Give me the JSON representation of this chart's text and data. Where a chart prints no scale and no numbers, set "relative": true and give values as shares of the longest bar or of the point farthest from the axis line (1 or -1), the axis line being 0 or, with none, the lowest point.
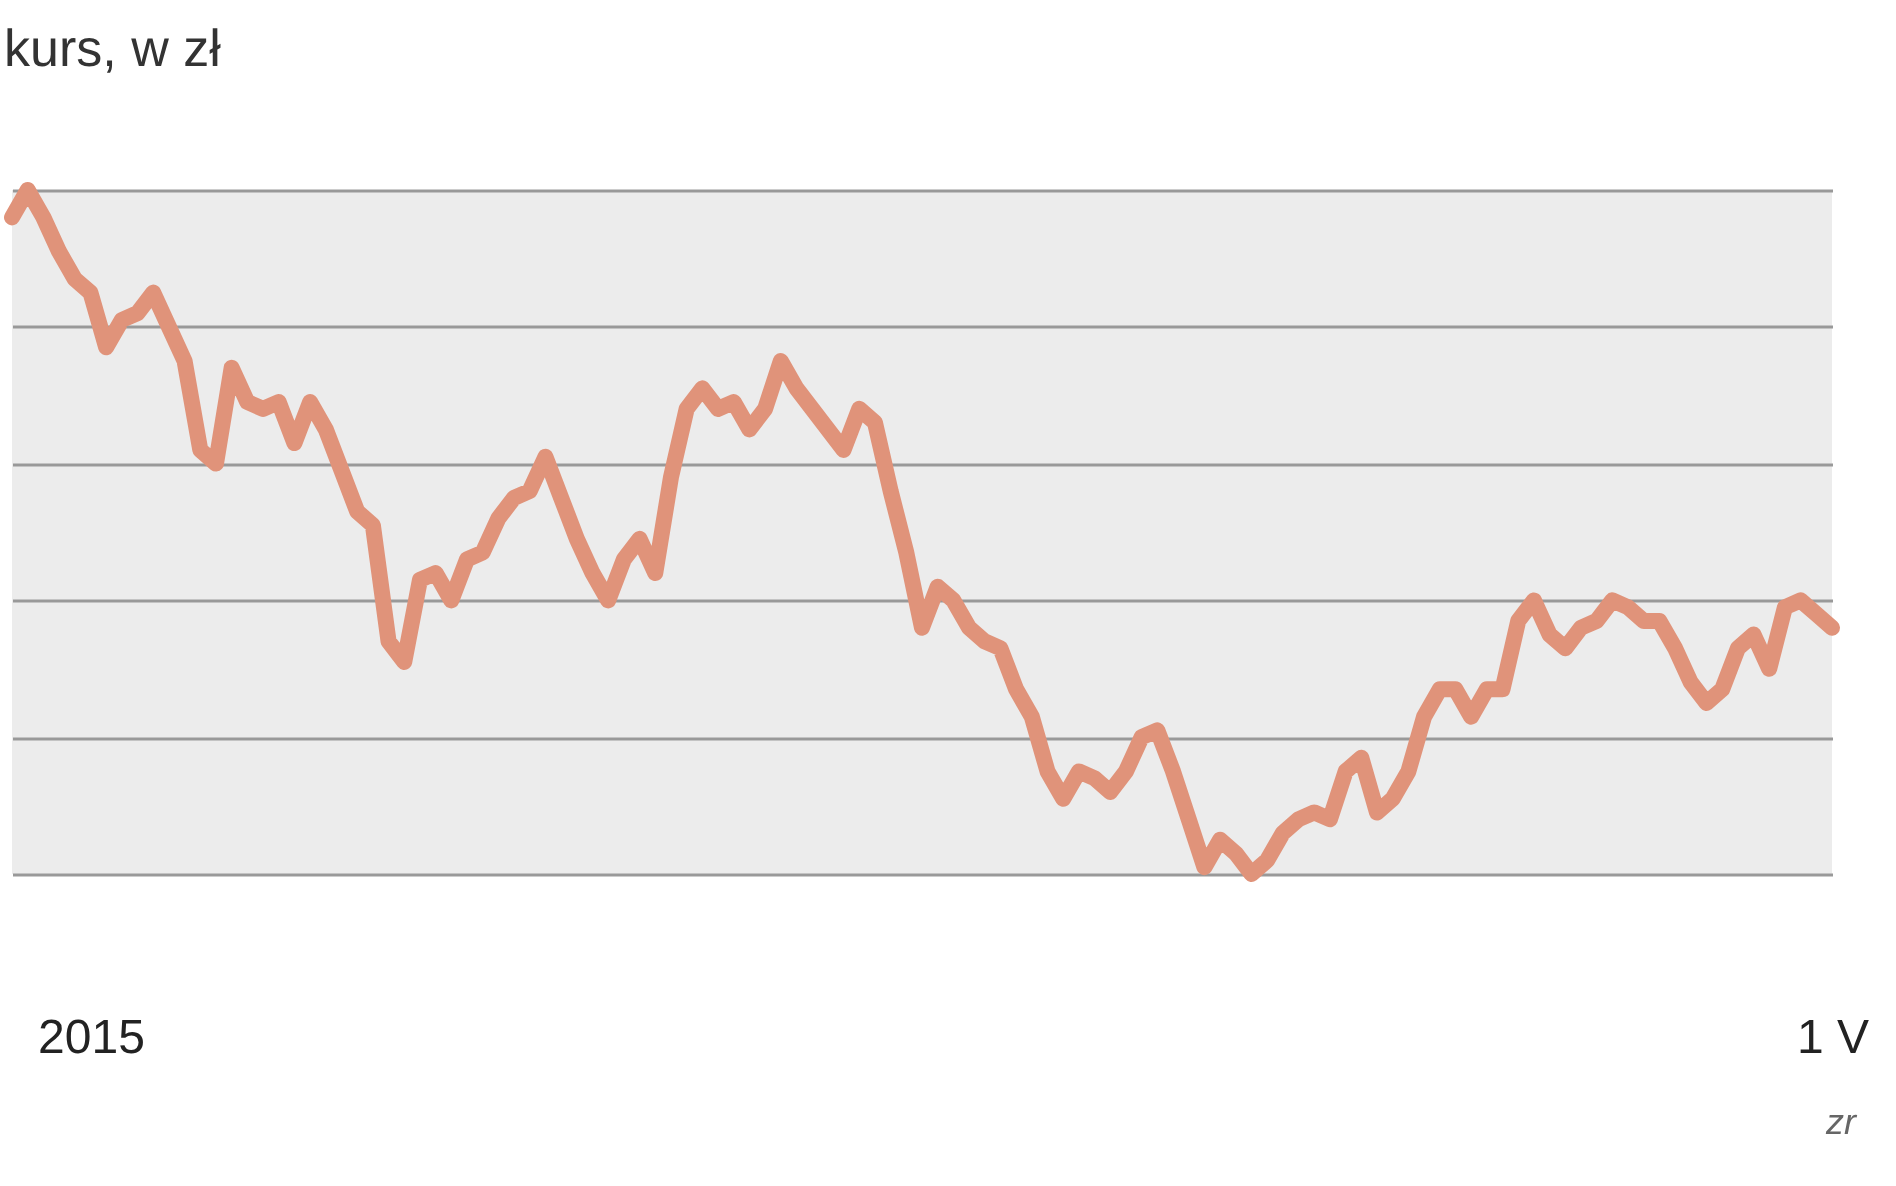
{
  "chart_data": {
    "type": "line",
    "title": "kurs, w zł",
    "relative": true,
    "grid": "y",
    "annotations": [
      "źr"
    ],
    "categories": [
      null,
      null,
      null,
      null,
      null,
      "2015",
      null,
      null,
      null,
      null,
      null,
      null,
      null,
      null,
      null,
      null,
      null,
      null,
      null,
      null,
      null,
      null,
      null,
      null,
      null,
      null,
      null,
      null,
      null,
      null,
      null,
      null,
      null,
      null,
      null,
      null,
      null,
      null,
      null,
      null,
      null,
      null,
      null,
      null,
      null,
      null,
      null,
      null,
      null,
      null,
      null,
      null,
      null,
      null,
      null,
      null,
      null,
      null,
      null,
      null,
      null,
      null,
      null,
      null,
      null,
      null,
      null,
      null,
      null,
      null,
      null,
      null,
      null,
      null,
      null,
      null,
      null,
      null,
      null,
      null,
      null,
      null,
      null,
      null,
      null,
      null,
      null,
      null,
      null,
      null,
      null,
      null,
      null,
      null,
      null,
      null,
      null,
      null,
      null,
      null,
      null,
      null,
      null,
      null,
      null,
      null,
      null,
      null,
      null,
      null,
      null,
      null,
      null,
      null,
      null,
      null,
      "1 V"
    ],
    "series": [
      {
        "color": "#e0937a",
        "values": [
          0.96,
          1,
          0.96,
          0.91,
          0.87,
          0.85,
          0.77,
          0.81,
          0.82,
          0.85,
          0.8,
          0.75,
          0.62,
          0.6,
          0.74,
          0.69,
          0.68,
          0.69,
          0.63,
          0.69,
          0.65,
          0.59,
          0.53,
          0.51,
          0.34,
          0.31,
          0.43,
          0.44,
          0.4,
          0.46,
          0.47,
          0.52,
          0.55,
          0.56,
          0.61,
          0.55,
          0.49,
          0.44,
          0.4,
          0.46,
          0.49,
          0.44,
          0.58,
          0.68,
          0.71,
          0.68,
          0.69,
          0.65,
          0.68,
          0.75,
          0.71,
          0.68,
          0.65,
          0.62,
          0.68,
          0.66,
          0.56,
          0.47,
          0.36,
          0.42,
          0.4,
          0.36,
          0.34,
          0.33,
          0.27,
          0.23,
          0.15,
          0.11,
          0.15,
          0.14,
          0.12,
          0.15,
          0.2,
          0.21,
          0.15,
          0.08,
          0.01,
          0.05,
          0.03,
          0,
          0.02,
          0.06,
          0.08,
          0.09,
          0.08,
          0.15,
          0.17,
          0.09,
          0.11,
          0.15,
          0.23,
          0.27,
          0.27,
          0.23,
          0.27,
          0.27,
          0.37,
          0.4,
          0.35,
          0.33,
          0.36,
          0.37,
          0.4,
          0.39,
          0.37,
          0.37,
          0.33,
          0.28,
          0.25,
          0.27,
          0.33,
          0.35,
          0.3,
          0.39,
          0.4,
          0.38,
          0.36
        ]
      }
    ]
  }
}
